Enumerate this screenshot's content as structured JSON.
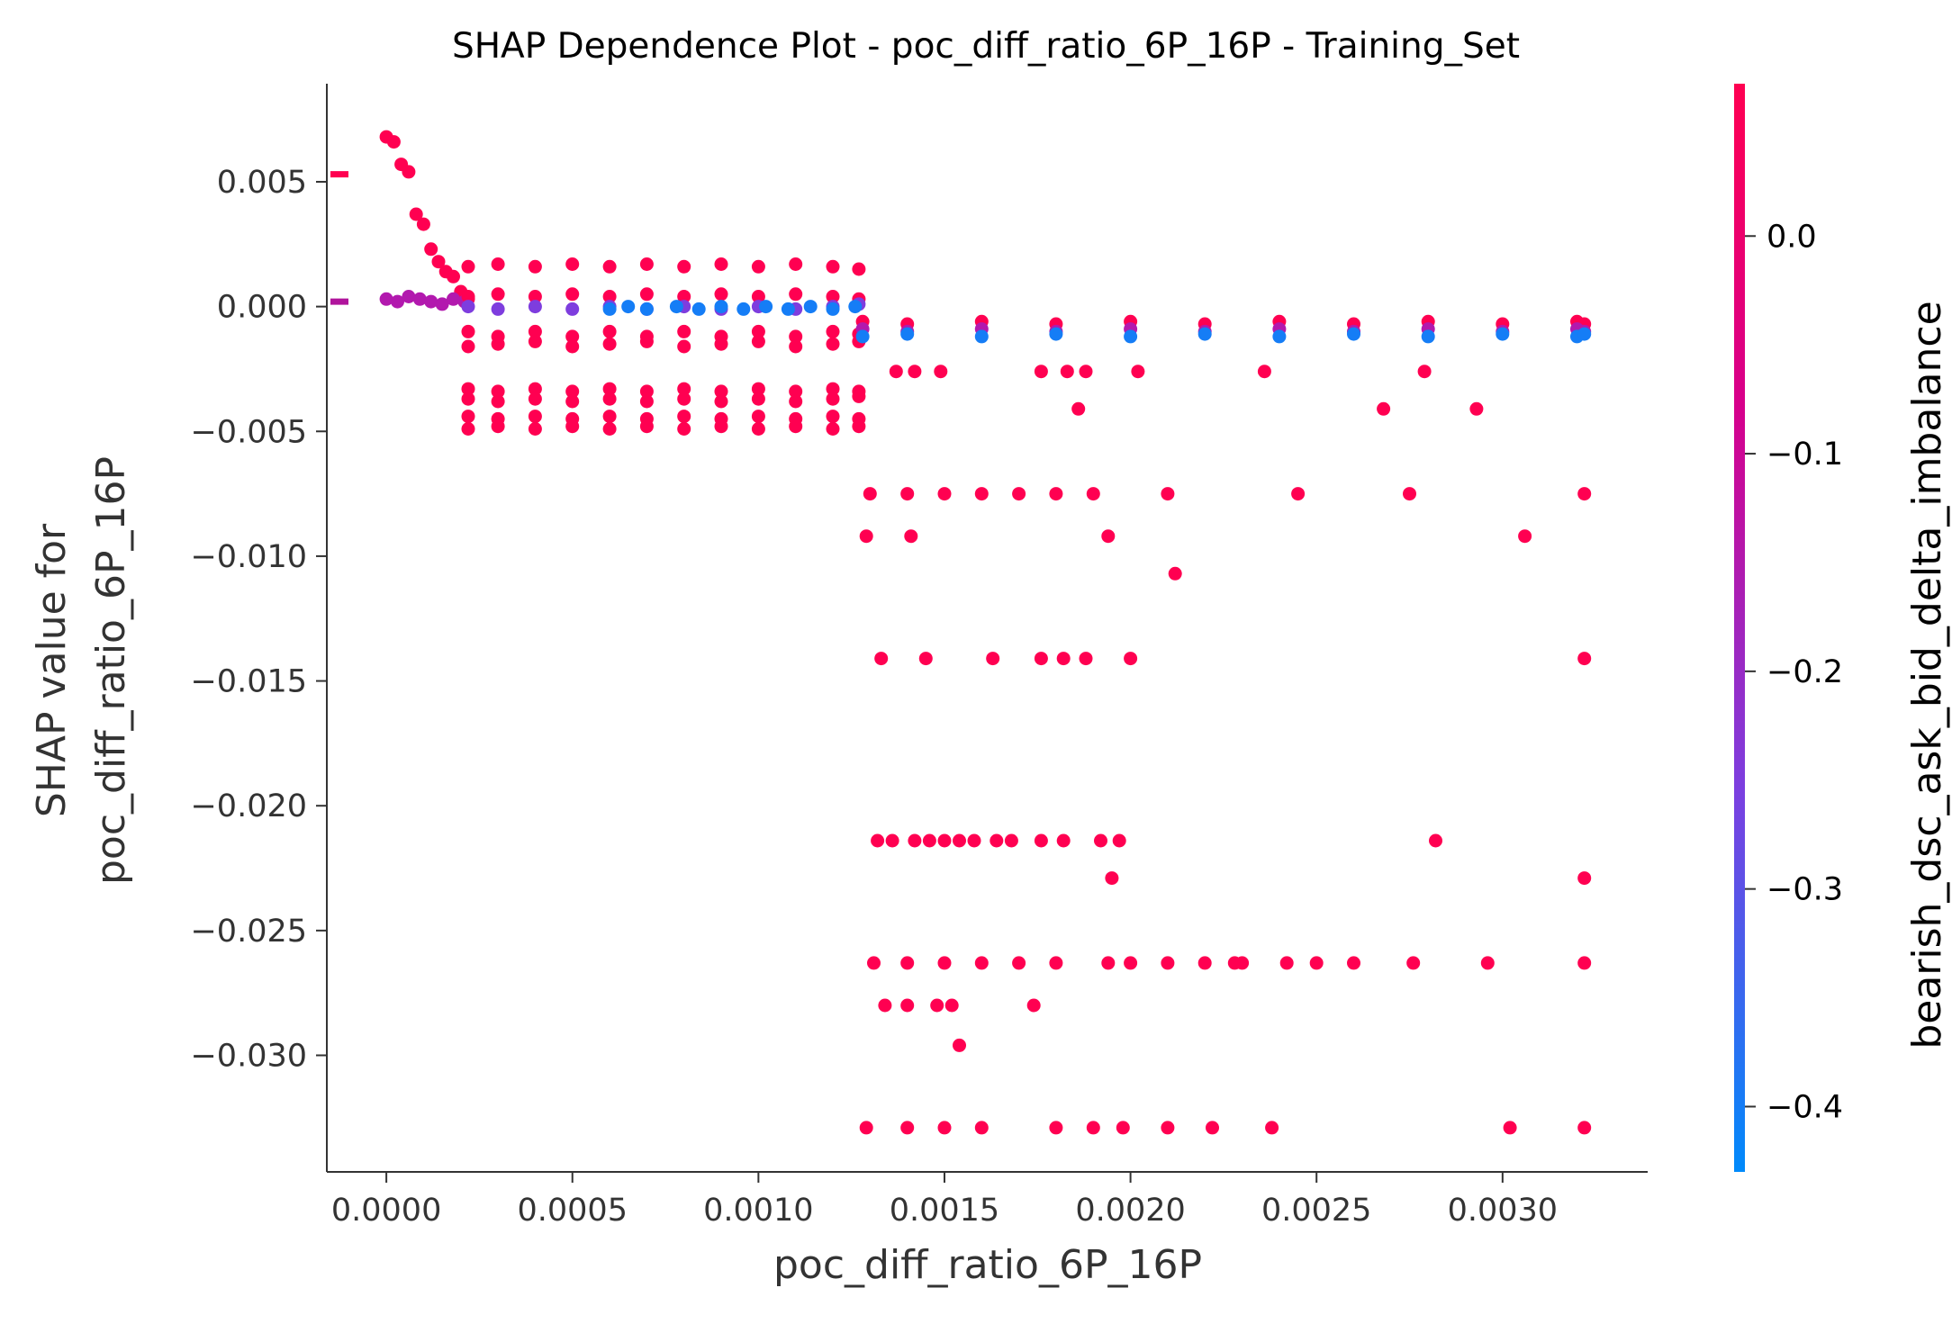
{
  "chart_data": {
    "type": "scatter",
    "title": "SHAP Dependence Plot - poc_diff_ratio_6P_16P - Training_Set",
    "xlabel": "poc_diff_ratio_6P_16P",
    "ylabel_lines": [
      "SHAP value for",
      "poc_diff_ratio_6P_16P"
    ],
    "xlim": [
      -0.00016,
      0.00339
    ],
    "ylim": [
      -0.03467,
      0.00893
    ],
    "x_ticks": [
      0.0,
      0.0005,
      0.001,
      0.0015,
      0.002,
      0.0025,
      0.003
    ],
    "x_tick_labels": [
      "0.0000",
      "0.0005",
      "0.0010",
      "0.0015",
      "0.0020",
      "0.0025",
      "0.0030"
    ],
    "y_ticks": [
      0.005,
      0.0,
      -0.005,
      -0.01,
      -0.015,
      -0.02,
      -0.025,
      -0.03
    ],
    "y_tick_labels": [
      "0.005",
      "0.000",
      "−0.005",
      "−0.010",
      "−0.015",
      "−0.020",
      "−0.025",
      "−0.030"
    ],
    "colorbar": {
      "label": "bearish_dsc_ask_bid_delta_imbalance",
      "range": [
        -0.43,
        0.07
      ],
      "ticks": [
        0.0,
        -0.1,
        -0.2,
        -0.3,
        -0.4
      ],
      "tick_labels": [
        "0.0",
        "−0.1",
        "−0.2",
        "−0.3",
        "−0.4"
      ],
      "colormap": [
        "#008afb",
        "#7b3fe0",
        "#d6008c",
        "#ff0051"
      ]
    },
    "side_markers": [
      {
        "y": 0.0053,
        "color": "#ff0051"
      },
      {
        "y": 0.0002,
        "color": "#b0149c"
      }
    ],
    "groups": [
      {
        "x": [
          0.0,
          2e-05,
          4e-05,
          6e-05,
          8e-05,
          0.0001,
          0.00012,
          0.00014,
          0.00016,
          0.00018,
          0.0002,
          0.00022
        ],
        "y": [
          0.0068,
          0.0066,
          0.0057,
          0.0054,
          0.0037,
          0.0033,
          0.0023,
          0.0018,
          0.0014,
          0.0012,
          0.0006,
          0.0003
        ],
        "c": 0.07
      },
      {
        "x": [
          0.0,
          3e-05,
          6e-05,
          9e-05,
          0.00012,
          0.00015,
          0.00018,
          0.00021
        ],
        "y": [
          0.0003,
          0.0002,
          0.0004,
          0.0003,
          0.0002,
          0.0001,
          0.0003,
          0.0002
        ],
        "c": -0.15
      },
      {
        "x": [
          0.00022,
          0.0003,
          0.0004,
          0.0005,
          0.0006,
          0.0007,
          0.0008,
          0.0009,
          0.001,
          0.0011,
          0.0012,
          0.00127
        ],
        "y": [
          0.0016,
          0.0017,
          0.0016,
          0.0017,
          0.0016,
          0.0017,
          0.0016,
          0.0017,
          0.0016,
          0.0017,
          0.0016,
          0.0015
        ],
        "c": 0.07
      },
      {
        "x": [
          0.00022,
          0.0003,
          0.0004,
          0.0005,
          0.0006,
          0.0007,
          0.0008,
          0.0009,
          0.001,
          0.0011,
          0.0012,
          0.00127
        ],
        "y": [
          0.0004,
          0.0005,
          0.0004,
          0.0005,
          0.0004,
          0.0005,
          0.0004,
          0.0005,
          0.0004,
          0.0005,
          0.0004,
          0.0003
        ],
        "c": 0.07
      },
      {
        "x": [
          0.00022,
          0.0003,
          0.0004,
          0.0005,
          0.0006,
          0.0007,
          0.0008,
          0.0009,
          0.001,
          0.0011,
          0.0012,
          0.00127
        ],
        "y": [
          0.0,
          -0.0001,
          0.0,
          -0.0001,
          0.0,
          -0.0001,
          0.0,
          -0.0001,
          0.0,
          -0.0001,
          0.0,
          0.0001
        ],
        "c": -0.25
      },
      {
        "x": [
          0.0006,
          0.00065,
          0.0007,
          0.00078,
          0.00084,
          0.0009,
          0.00096,
          0.00102,
          0.00108,
          0.00114,
          0.0012,
          0.00126
        ],
        "y": [
          -0.0001,
          0.0,
          -0.0001,
          0.0,
          -0.0001,
          0.0,
          -0.0001,
          0.0,
          -0.0001,
          0.0,
          -0.0001,
          0.0
        ],
        "c": -0.4
      },
      {
        "x": [
          0.00022,
          0.0003,
          0.0004,
          0.0005,
          0.0006,
          0.0007,
          0.0008,
          0.0009,
          0.001,
          0.0011,
          0.0012,
          0.00127
        ],
        "y": [
          -0.001,
          -0.0012,
          -0.001,
          -0.0012,
          -0.001,
          -0.0012,
          -0.001,
          -0.0012,
          -0.001,
          -0.0012,
          -0.001,
          -0.0011
        ],
        "c": 0.07
      },
      {
        "x": [
          0.00022,
          0.0003,
          0.0004,
          0.0005,
          0.0006,
          0.0007,
          0.0008,
          0.0009,
          0.001,
          0.0011,
          0.0012,
          0.00127
        ],
        "y": [
          -0.0016,
          -0.0015,
          -0.0014,
          -0.0016,
          -0.0015,
          -0.0014,
          -0.0016,
          -0.0015,
          -0.0014,
          -0.0016,
          -0.0015,
          -0.0014
        ],
        "c": 0.07
      },
      {
        "x": [
          0.00022,
          0.0003,
          0.0004,
          0.0005,
          0.0006,
          0.0007,
          0.0008,
          0.0009,
          0.001,
          0.0011,
          0.0012,
          0.00127
        ],
        "y": [
          -0.0033,
          -0.0034,
          -0.0033,
          -0.0034,
          -0.0033,
          -0.0034,
          -0.0033,
          -0.0034,
          -0.0033,
          -0.0034,
          -0.0033,
          -0.0034
        ],
        "c": 0.07
      },
      {
        "x": [
          0.00022,
          0.0003,
          0.0004,
          0.0005,
          0.0006,
          0.0007,
          0.0008,
          0.0009,
          0.001,
          0.0011,
          0.0012,
          0.00127
        ],
        "y": [
          -0.0037,
          -0.0038,
          -0.0037,
          -0.0038,
          -0.0037,
          -0.0038,
          -0.0037,
          -0.0038,
          -0.0037,
          -0.0038,
          -0.0037,
          -0.0036
        ],
        "c": 0.07
      },
      {
        "x": [
          0.00022,
          0.0003,
          0.0004,
          0.0005,
          0.0006,
          0.0007,
          0.0008,
          0.0009,
          0.001,
          0.0011,
          0.0012,
          0.00127
        ],
        "y": [
          -0.0044,
          -0.0045,
          -0.0044,
          -0.0045,
          -0.0044,
          -0.0045,
          -0.0044,
          -0.0045,
          -0.0044,
          -0.0045,
          -0.0044,
          -0.0045
        ],
        "c": 0.07
      },
      {
        "x": [
          0.00022,
          0.0003,
          0.0004,
          0.0005,
          0.0006,
          0.0007,
          0.0008,
          0.0009,
          0.001,
          0.0011,
          0.0012,
          0.00127
        ],
        "y": [
          -0.0049,
          -0.0048,
          -0.0049,
          -0.0048,
          -0.0049,
          -0.0048,
          -0.0049,
          -0.0048,
          -0.0049,
          -0.0048,
          -0.0049,
          -0.0048
        ],
        "c": 0.07
      },
      {
        "x": [
          0.00128,
          0.0014,
          0.0016,
          0.0018,
          0.002,
          0.0022,
          0.0024,
          0.0026,
          0.0028,
          0.003,
          0.0032,
          0.00322
        ],
        "y": [
          -0.0006,
          -0.0007,
          -0.0006,
          -0.0007,
          -0.0006,
          -0.0007,
          -0.0006,
          -0.0007,
          -0.0006,
          -0.0007,
          -0.0006,
          -0.0007
        ],
        "c": 0.07
      },
      {
        "x": [
          0.00128,
          0.0014,
          0.0016,
          0.0018,
          0.002,
          0.0022,
          0.0024,
          0.0026,
          0.0028,
          0.003,
          0.0032,
          0.00322
        ],
        "y": [
          -0.0009,
          -0.001,
          -0.0009,
          -0.001,
          -0.0009,
          -0.001,
          -0.0009,
          -0.001,
          -0.0009,
          -0.001,
          -0.0009,
          -0.001
        ],
        "c": -0.15
      },
      {
        "x": [
          0.00128,
          0.0014,
          0.0016,
          0.0018,
          0.002,
          0.0022,
          0.0024,
          0.0026,
          0.0028,
          0.003,
          0.0032,
          0.00322
        ],
        "y": [
          -0.0012,
          -0.0011,
          -0.0012,
          -0.0011,
          -0.0012,
          -0.0011,
          -0.0012,
          -0.0011,
          -0.0012,
          -0.0011,
          -0.0012,
          -0.0011
        ],
        "c": -0.4
      },
      {
        "x": [
          0.00137,
          0.00142,
          0.00149,
          0.00176,
          0.00183,
          0.00188,
          0.00202,
          0.00236,
          0.00279
        ],
        "y": [
          -0.0026,
          -0.0026,
          -0.0026,
          -0.0026,
          -0.0026,
          -0.0026,
          -0.0026,
          -0.0026,
          -0.0026
        ],
        "c": 0.07
      },
      {
        "x": [
          0.00186,
          0.00268,
          0.00293
        ],
        "y": [
          -0.0041,
          -0.0041,
          -0.0041
        ],
        "c": 0.07
      },
      {
        "x": [
          0.0013,
          0.0014,
          0.0015,
          0.0016,
          0.0017,
          0.0018,
          0.0019,
          0.0021,
          0.00245,
          0.00275,
          0.00322
        ],
        "y": [
          -0.0075,
          -0.0075,
          -0.0075,
          -0.0075,
          -0.0075,
          -0.0075,
          -0.0075,
          -0.0075,
          -0.0075,
          -0.0075,
          -0.0075
        ],
        "c": 0.07
      },
      {
        "x": [
          0.00129,
          0.00141,
          0.00194,
          0.00306
        ],
        "y": [
          -0.0092,
          -0.0092,
          -0.0092,
          -0.0092
        ],
        "c": 0.07
      },
      {
        "x": [
          0.00212
        ],
        "y": [
          -0.0107
        ],
        "c": 0.07
      },
      {
        "x": [
          0.00133,
          0.00145,
          0.00163,
          0.00176,
          0.00182,
          0.00188,
          0.002,
          0.00322
        ],
        "y": [
          -0.0141,
          -0.0141,
          -0.0141,
          -0.0141,
          -0.0141,
          -0.0141,
          -0.0141,
          -0.0141
        ],
        "c": 0.07
      },
      {
        "x": [
          0.00132,
          0.00136,
          0.00142,
          0.00146,
          0.0015,
          0.00154,
          0.00158,
          0.00164,
          0.00168,
          0.00176,
          0.00182,
          0.00192,
          0.00197,
          0.00282
        ],
        "y": [
          -0.0214,
          -0.0214,
          -0.0214,
          -0.0214,
          -0.0214,
          -0.0214,
          -0.0214,
          -0.0214,
          -0.0214,
          -0.0214,
          -0.0214,
          -0.0214,
          -0.0214,
          -0.0214
        ],
        "c": 0.07
      },
      {
        "x": [
          0.00195,
          0.00322
        ],
        "y": [
          -0.0229,
          -0.0229
        ],
        "c": 0.07
      },
      {
        "x": [
          0.00131,
          0.0014,
          0.0015,
          0.0016,
          0.0017,
          0.0018,
          0.00194,
          0.002,
          0.0021,
          0.0022,
          0.00228,
          0.0023,
          0.00242,
          0.0025,
          0.0026,
          0.00276,
          0.00296,
          0.00322
        ],
        "y": [
          -0.0263,
          -0.0263,
          -0.0263,
          -0.0263,
          -0.0263,
          -0.0263,
          -0.0263,
          -0.0263,
          -0.0263,
          -0.0263,
          -0.0263,
          -0.0263,
          -0.0263,
          -0.0263,
          -0.0263,
          -0.0263,
          -0.0263,
          -0.0263
        ],
        "c": 0.07
      },
      {
        "x": [
          0.00134,
          0.0014,
          0.00148,
          0.00152,
          0.00174
        ],
        "y": [
          -0.028,
          -0.028,
          -0.028,
          -0.028,
          -0.028
        ],
        "c": 0.07
      },
      {
        "x": [
          0.00154
        ],
        "y": [
          -0.0296
        ],
        "c": 0.07
      },
      {
        "x": [
          0.00129,
          0.0014,
          0.0015,
          0.0016,
          0.0018,
          0.0019,
          0.00198,
          0.0021,
          0.00222,
          0.00238,
          0.00302,
          0.00322
        ],
        "y": [
          -0.0329,
          -0.0329,
          -0.0329,
          -0.0329,
          -0.0329,
          -0.0329,
          -0.0329,
          -0.0329,
          -0.0329,
          -0.0329,
          -0.0329,
          -0.0329
        ],
        "c": 0.07
      }
    ]
  }
}
